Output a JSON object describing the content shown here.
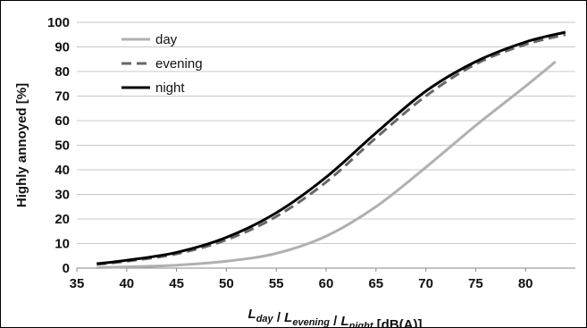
{
  "chart_data": {
    "type": "line",
    "ylabel": "Highly annoyed [%]",
    "xlabel": {
      "parts": [
        {
          "text": "L",
          "sub": "day"
        },
        {
          "text": " / "
        },
        {
          "text": "L",
          "sub": "evening"
        },
        {
          "text": " / "
        },
        {
          "text": "L",
          "sub": "night"
        },
        {
          "text": " [dB(A)]"
        }
      ]
    },
    "xlim": [
      35,
      85
    ],
    "ylim": [
      0,
      100
    ],
    "xticks": [
      35,
      40,
      45,
      50,
      55,
      60,
      65,
      70,
      75,
      80
    ],
    "yticks": [
      0,
      10,
      20,
      30,
      40,
      50,
      60,
      70,
      80,
      90,
      100
    ],
    "grid": "horizontal",
    "legend_position": "top-left",
    "series": [
      {
        "name": "day",
        "color": "#b0b0b0",
        "dash": "solid",
        "x": [
          37,
          40,
          45,
          50,
          55,
          60,
          65,
          70,
          75,
          80,
          83
        ],
        "y": [
          0.2,
          0.5,
          1.2,
          2.8,
          6,
          13,
          25,
          41,
          58,
          74,
          84
        ]
      },
      {
        "name": "evening",
        "color": "#666666",
        "dash": "dashed",
        "x": [
          37,
          40,
          45,
          50,
          55,
          60,
          65,
          70,
          75,
          80,
          84
        ],
        "y": [
          1.5,
          2.8,
          5.8,
          11.5,
          21,
          35,
          53,
          70,
          83,
          91,
          95
        ]
      },
      {
        "name": "night",
        "color": "#000000",
        "dash": "solid",
        "x": [
          37,
          40,
          45,
          50,
          55,
          60,
          65,
          70,
          75,
          80,
          84
        ],
        "y": [
          1.8,
          3.2,
          6.4,
          12.5,
          22.5,
          37,
          55,
          72,
          84,
          92,
          96
        ]
      }
    ]
  }
}
